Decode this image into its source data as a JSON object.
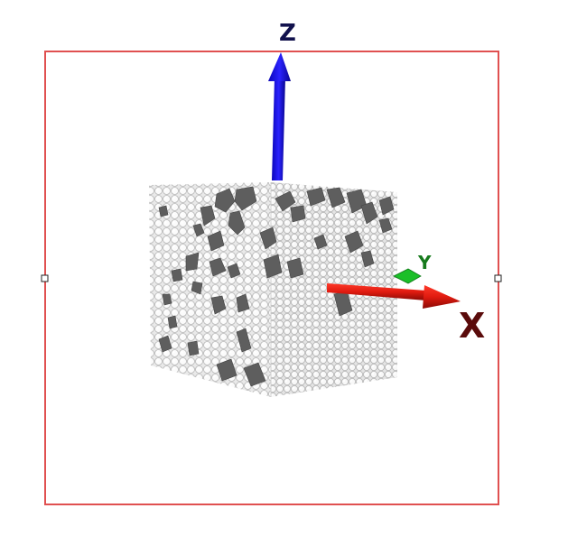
{
  "axes": {
    "z": {
      "label": "Z",
      "color": "#1a13e6",
      "label_color": "#12124d"
    },
    "x": {
      "label": "X",
      "color": "#e21a12",
      "label_color": "#5a0b0b"
    },
    "y": {
      "label": "Y",
      "color": "#1bbf28",
      "label_color": "#177a1c"
    }
  },
  "bounding_box": {
    "color": "#e05050"
  },
  "specimen": {
    "matrix_color": "#f4f4f4",
    "particle_outline": "#b8b8b8",
    "aggregate_color": "#5e5e5e"
  },
  "icons": [
    "resize-handle-left-icon",
    "resize-handle-right-icon"
  ]
}
